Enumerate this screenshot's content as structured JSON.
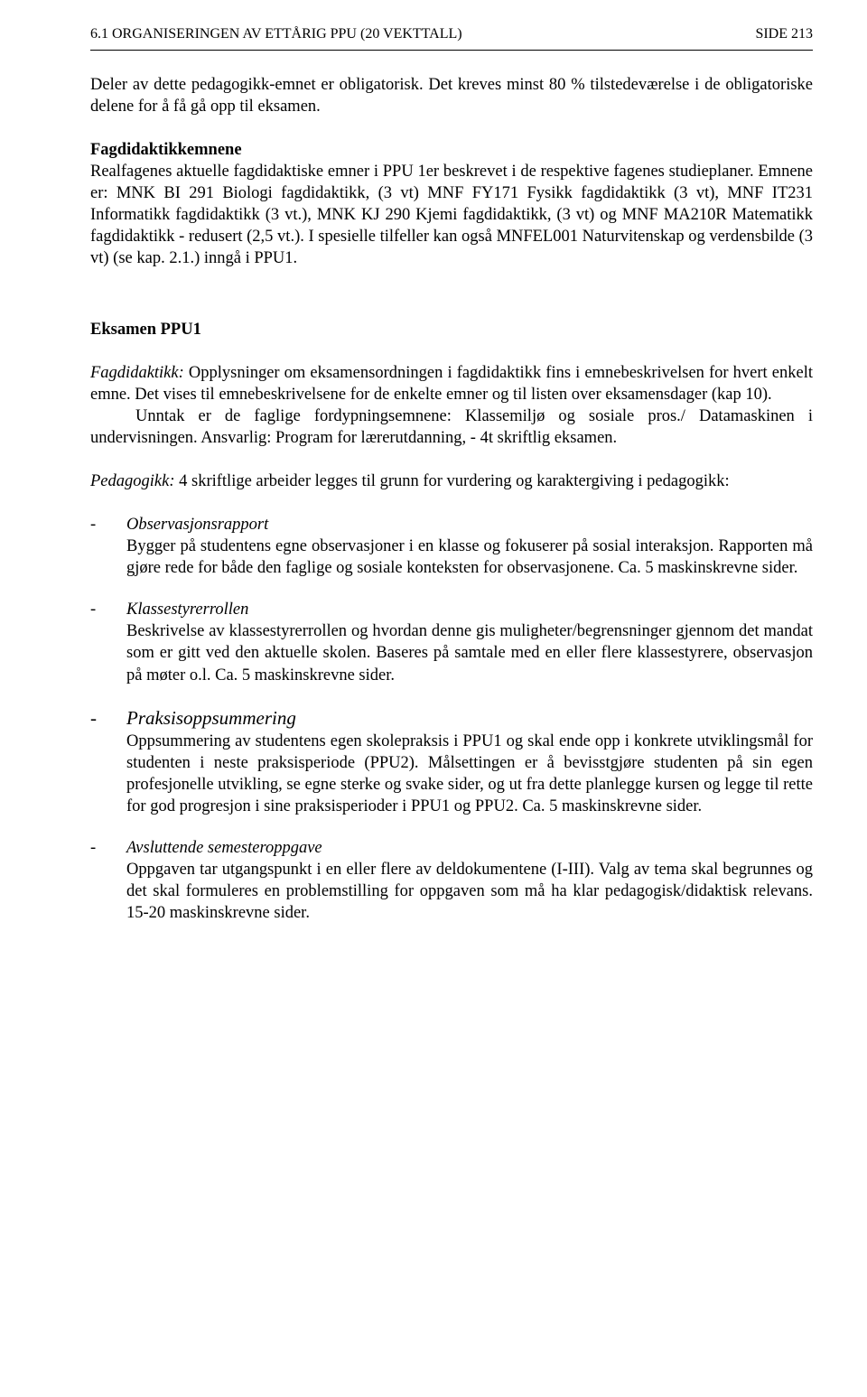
{
  "header": {
    "left": "6.1 ORGANISERINGEN AV ETTÅRIG PPU (20 VEKTTALL)",
    "right": "SIDE 213"
  },
  "intro": "Deler av dette pedagogikk-emnet er obligatorisk. Det kreves minst 80 % tilstedeværelse i de obligatoriske delene for å få gå opp til eksamen.",
  "fagdidaktikk_heading": "Fagdidaktikkemnene",
  "fagdidaktikk_body": "Realfagenes aktuelle fagdidaktiske emner i PPU 1er beskrevet i de respektive fagenes studieplaner. Emnene er: MNK BI 291 Biologi fagdidaktikk, (3 vt) MNF FY171 Fysikk fagdidaktikk (3 vt), MNF IT231 Informatikk fagdidaktikk (3 vt.), MNK KJ 290 Kjemi fagdidaktikk, (3 vt) og MNF MA210R Matematikk fagdidaktikk - redusert (2,5 vt.). I spesielle tilfeller kan også MNFEL001 Naturvitenskap og verdensbilde (3 vt) (se kap. 2.1.) inngå i PPU1.",
  "eksamen_heading": "Eksamen PPU1",
  "fagdidaktikk_label": "Fagdidaktikk:",
  "fagdidaktikk_text1": " Opplysninger om eksamensordningen i fagdidaktikk fins i emnebeskrivelsen for hvert enkelt emne. Det vises til emnebeskrivelsene for de enkelte emner og til listen over eksamensdager (kap 10).",
  "fagdidaktikk_text2": "Unntak er de faglige fordypningsemnene: Klassemiljø og sosiale pros./ Datamaskinen i undervisningen.  Ansvarlig: Program for lærerutdanning, - 4t skriftlig eksamen.",
  "pedagogikk_label": "Pedagogikk:",
  "pedagogikk_text": "  4 skriftlige arbeider legges til grunn for vurdering og karaktergiving i pedagogikk:",
  "items": [
    {
      "title": "Observasjonsrapport",
      "body": "Bygger på studentens egne observasjoner i en klasse og fokuserer på sosial interaksjon. Rapporten må gjøre rede for både den faglige og sosiale konteksten for observasjonene. Ca. 5 maskinskrevne sider."
    },
    {
      "title": "Klasseromsrollen",
      "title_override": "Klassestyrerrollen",
      "body": "Beskrivelse av klassestyrerrollen og hvordan denne gis muligheter/begrensninger gjennom det mandat som er gitt ved den aktuelle skolen. Baseres på samtale med en eller flere klassestyrere, observasjon på møter o.l. Ca. 5 maskinskrevne sider."
    },
    {
      "title": "Praksisoppsummering",
      "large": true,
      "body": "Oppsummering av studentens egen skolepraksis i PPU1 og skal ende opp i konkrete utviklingsmål for studenten i neste praksisperiode (PPU2). Målsettingen er å bevisstgjøre studenten på sin egen profesjonelle utvikling, se egne sterke og svake sider, og ut fra dette planlegge kursen og legge til rette for god progresjon i sine praksisperioder i PPU1 og PPU2. Ca. 5 maskinskrevne sider."
    },
    {
      "title": "Avsluttende semesteroppgave",
      "body": "Oppgaven tar utgangspunkt i en eller flere av deldokumentene (I-III). Valg av tema skal begrunnes og det skal formuleres en problemstilling for oppgaven som må ha klar pedagogisk/didaktisk relevans. 15-20 maskinskrevne sider."
    }
  ]
}
